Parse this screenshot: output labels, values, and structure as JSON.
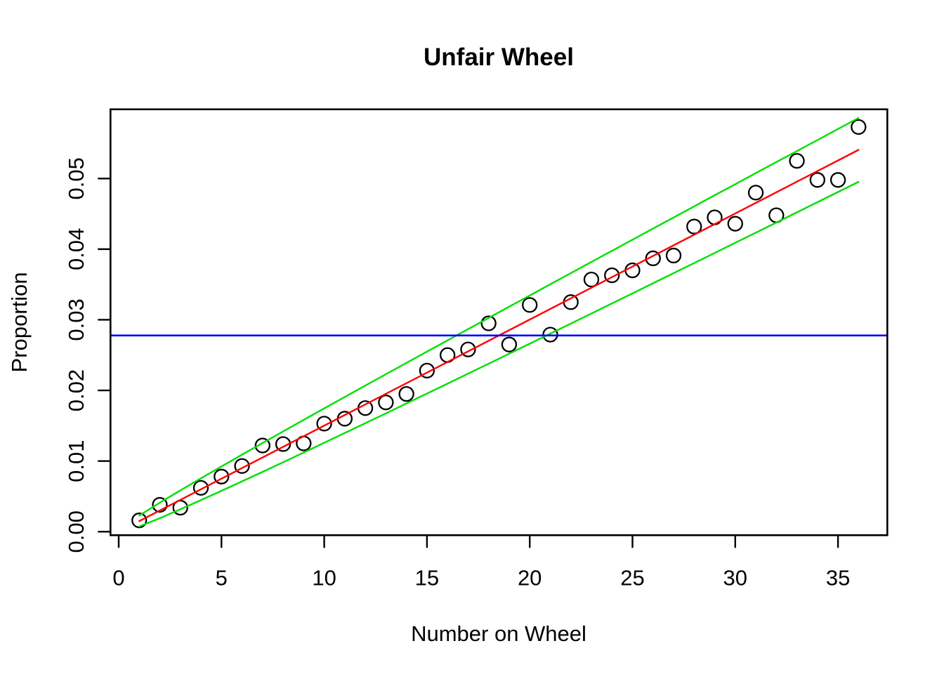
{
  "figure": {
    "title": "Unfair Wheel",
    "x_axis_label": "Number on Wheel",
    "y_axis_label": "Proportion"
  },
  "chart_data": {
    "type": "scatter",
    "title": "Unfair Wheel",
    "xlabel": "Number on Wheel",
    "ylabel": "Proportion",
    "xlim": [
      -0.4,
      37.4
    ],
    "ylim": [
      -0.0005,
      0.0598
    ],
    "grid": false,
    "legend": "none",
    "x_ticks": [
      0,
      5,
      10,
      15,
      20,
      25,
      30,
      35
    ],
    "x_tick_labels": [
      "0",
      "5",
      "10",
      "15",
      "20",
      "25",
      "30",
      "35"
    ],
    "y_ticks": [
      0.0,
      0.01,
      0.02,
      0.03,
      0.04,
      0.05
    ],
    "y_tick_labels": [
      "0.00",
      "0.01",
      "0.02",
      "0.03",
      "0.04",
      "0.05"
    ],
    "series": [
      {
        "name": "observed-proportions",
        "type": "points",
        "marker": "open-circle",
        "color": "#000000",
        "x": [
          1,
          2,
          3,
          4,
          5,
          6,
          7,
          8,
          9,
          10,
          11,
          12,
          13,
          14,
          15,
          16,
          17,
          18,
          19,
          20,
          21,
          22,
          23,
          24,
          25,
          26,
          27,
          28,
          29,
          30,
          31,
          32,
          33,
          34,
          35,
          36
        ],
        "y": [
          0.0016,
          0.0038,
          0.0034,
          0.0062,
          0.0078,
          0.0093,
          0.0122,
          0.0124,
          0.0125,
          0.0153,
          0.016,
          0.0175,
          0.0183,
          0.0195,
          0.0228,
          0.025,
          0.0258,
          0.0295,
          0.0265,
          0.0321,
          0.0279,
          0.0325,
          0.0357,
          0.0363,
          0.037,
          0.0387,
          0.0391,
          0.0432,
          0.0445,
          0.0436,
          0.048,
          0.0448,
          0.0525,
          0.0498,
          0.0498,
          0.0573
        ]
      },
      {
        "name": "expected-proportion-line",
        "type": "line",
        "color": "#FF0000",
        "x": [
          1,
          36
        ],
        "y": [
          0.0015,
          0.05405
        ]
      },
      {
        "name": "upper-confidence-bound",
        "type": "line",
        "color": "#00E000",
        "x": [
          1,
          2,
          3,
          4,
          5,
          6,
          7,
          8,
          9,
          10,
          11,
          12,
          13,
          14,
          15,
          16,
          17,
          18,
          19,
          20,
          21,
          22,
          23,
          24,
          25,
          26,
          27,
          28,
          29,
          30,
          31,
          32,
          33,
          34,
          35,
          36
        ],
        "y": [
          0.00228,
          0.0041,
          0.00584,
          0.00755,
          0.00923,
          0.0109,
          0.01255,
          0.01419,
          0.01582,
          0.01745,
          0.01907,
          0.02068,
          0.02229,
          0.02389,
          0.02549,
          0.02709,
          0.02868,
          0.03027,
          0.03186,
          0.03344,
          0.03503,
          0.03661,
          0.03819,
          0.03976,
          0.04134,
          0.04291,
          0.04448,
          0.04606,
          0.04763,
          0.04919,
          0.05076,
          0.05233,
          0.05389,
          0.05545,
          0.05702,
          0.05858
        ]
      },
      {
        "name": "lower-confidence-bound",
        "type": "line",
        "color": "#00E000",
        "x": [
          1,
          2,
          3,
          4,
          5,
          6,
          7,
          8,
          9,
          10,
          11,
          12,
          13,
          14,
          15,
          16,
          17,
          18,
          19,
          20,
          21,
          22,
          23,
          24,
          25,
          26,
          27,
          28,
          29,
          30,
          31,
          32,
          33,
          34,
          35,
          36
        ],
        "y": [
          0.00073,
          0.00191,
          0.00317,
          0.00446,
          0.00578,
          0.00712,
          0.00847,
          0.00983,
          0.0112,
          0.01258,
          0.01397,
          0.01536,
          0.01675,
          0.01815,
          0.01955,
          0.02096,
          0.02237,
          0.02378,
          0.0252,
          0.02662,
          0.02804,
          0.02946,
          0.03088,
          0.03231,
          0.03374,
          0.03517,
          0.0366,
          0.03803,
          0.03946,
          0.0409,
          0.04233,
          0.04377,
          0.04521,
          0.04665,
          0.04809,
          0.04953
        ]
      },
      {
        "name": "fair-wheel-proportion-line",
        "type": "hline",
        "color": "#0000FF",
        "y": 0.02778
      }
    ]
  }
}
